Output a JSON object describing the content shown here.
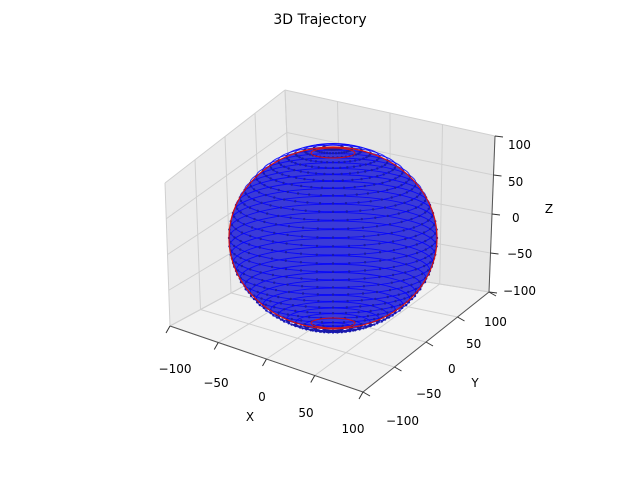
{
  "chart_data": {
    "type": "scatter",
    "projection": "3d",
    "title": "3D Trajectory",
    "xlabel": "X",
    "ylabel": "Y",
    "zlabel": "Z",
    "xlim": [
      -100,
      100
    ],
    "ylim": [
      -100,
      100
    ],
    "zlim": [
      -100,
      100
    ],
    "xticks": [
      "−100",
      "−50",
      "0",
      "50",
      "100"
    ],
    "yticks": [
      "−100",
      "−50",
      "0",
      "50",
      "100"
    ],
    "zticks": [
      "−100",
      "−50",
      "0",
      "50",
      "100"
    ],
    "grid": true,
    "surface": {
      "shape": "sphere",
      "center": [
        0,
        0,
        0
      ],
      "radius": 100,
      "point_color": "#1a1aa6",
      "line_color": "#0000ff",
      "outline_color": "#d21414"
    }
  }
}
